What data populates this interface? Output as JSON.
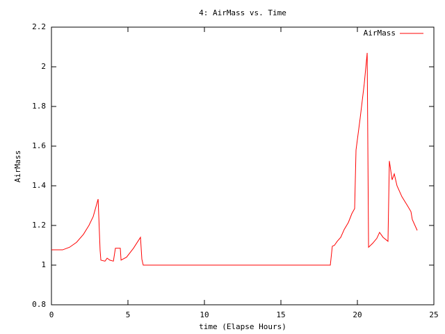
{
  "chart_data": {
    "type": "line",
    "title": "4: AirMass vs. Time",
    "x_label": "time (Elapse Hours)",
    "y_label": "AirMass",
    "x": [
      0,
      0.73,
      1.18,
      1.64,
      2.09,
      2.45,
      2.73,
      3.05,
      3.18,
      3.23,
      3.5,
      3.64,
      3.82,
      4.05,
      4.18,
      4.5,
      4.55,
      4.91,
      5.36,
      5.82,
      5.91,
      6.0,
      18.23,
      18.36,
      18.5,
      18.68,
      18.91,
      19.14,
      19.41,
      19.64,
      19.82,
      19.91,
      20.18,
      20.45,
      20.64,
      20.73,
      21.0,
      21.27,
      21.45,
      21.68,
      22.0,
      22.09,
      22.27,
      22.41,
      22.59,
      22.91,
      23.27,
      23.5,
      23.59,
      23.91
    ],
    "series": [
      {
        "name": "AirMass",
        "color": "#ff0000",
        "values": [
          1.077,
          1.077,
          1.09,
          1.115,
          1.155,
          1.2,
          1.245,
          1.333,
          1.075,
          1.025,
          1.02,
          1.035,
          1.025,
          1.02,
          1.085,
          1.085,
          1.025,
          1.04,
          1.085,
          1.14,
          1.03,
          1.0,
          1.0,
          1.095,
          1.1,
          1.12,
          1.14,
          1.18,
          1.215,
          1.26,
          1.285,
          1.58,
          1.74,
          1.915,
          2.07,
          1.09,
          1.11,
          1.135,
          1.165,
          1.14,
          1.12,
          1.525,
          1.43,
          1.46,
          1.4,
          1.345,
          1.3,
          1.27,
          1.23,
          1.175
        ]
      }
    ],
    "xlim": [
      0,
      25
    ],
    "xticks": [
      0,
      5,
      10,
      15,
      20,
      25
    ],
    "ylim": [
      0.8,
      2.2
    ],
    "yticks": [
      0.8,
      1,
      1.2,
      1.4,
      1.6,
      1.8,
      2,
      2.2
    ],
    "legend": "top-right",
    "grid": false
  }
}
